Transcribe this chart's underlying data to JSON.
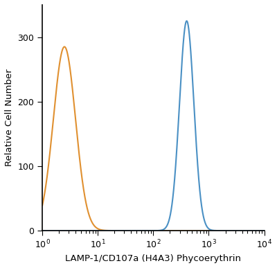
{
  "title": "",
  "xlabel": "LAMP-1/CD107a (H4A3) Phycoerythrin",
  "ylabel": "Relative Cell Number",
  "xlim_log": [
    1.0,
    10000
  ],
  "ylim": [
    0,
    350
  ],
  "yticks": [
    0,
    100,
    200,
    300
  ],
  "orange_color": "#E09030",
  "blue_color": "#4A90C4",
  "orange_peak_x": 2.5,
  "orange_peak_y": 285,
  "orange_sigma_log": 0.2,
  "orange_left_y_at_1": 13,
  "blue_peak_x": 400,
  "blue_peak_y": 325,
  "blue_sigma_log": 0.13,
  "linewidth": 1.5,
  "font_size_label": 9.5,
  "font_size_tick": 9,
  "background_color": "#ffffff",
  "spine_linewidth": 1.2,
  "xtick_major_length": 5,
  "xtick_minor_length": 3,
  "ytick_major_length": 5
}
